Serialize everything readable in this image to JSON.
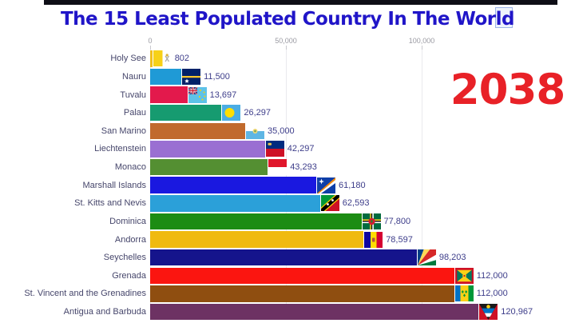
{
  "header": {
    "title": "The 15 Least Populated Country In The World",
    "title_color": "#2015c8"
  },
  "year": {
    "text": "2038",
    "color": "#e82127"
  },
  "chart_data": {
    "type": "bar",
    "orientation": "horizontal",
    "title": "The 15 Least Populated Country In The World",
    "year": "2038",
    "x_axis": {
      "ticks": [
        "0",
        "50,000",
        "100,000"
      ],
      "tick_values": [
        0,
        50000,
        100000
      ],
      "grid": true,
      "position": "top"
    },
    "sort": "ascending",
    "countries": [
      {
        "name": "Holy See",
        "value": 802,
        "label": "802",
        "color": "#f0bf1c",
        "flag": "holy-see"
      },
      {
        "name": "Nauru",
        "value": 11500,
        "label": "11,500",
        "color": "#1f9ad6",
        "flag": "nauru"
      },
      {
        "name": "Tuvalu",
        "value": 13697,
        "label": "13,697",
        "color": "#e3194c",
        "flag": "tuvalu"
      },
      {
        "name": "Palau",
        "value": 26297,
        "label": "26,297",
        "color": "#169b70",
        "flag": "palau"
      },
      {
        "name": "San Marino",
        "value": 35000,
        "label": "35,000",
        "color": "#c16a2d",
        "flag": "san-marino"
      },
      {
        "name": "Liechtenstein",
        "value": 42297,
        "label": "42,297",
        "color": "#9a6fd2",
        "flag": "liechtenstein"
      },
      {
        "name": "Monaco",
        "value": 43293,
        "label": "43,293",
        "color": "#548f32",
        "flag": "monaco"
      },
      {
        "name": "Marshall Islands",
        "value": 61180,
        "label": "61,180",
        "color": "#1a18e0",
        "flag": "marshall-islands"
      },
      {
        "name": "St. Kitts and Nevis",
        "value": 62593,
        "label": "62,593",
        "color": "#2ba0d9",
        "flag": "st-kitts-and-nevis"
      },
      {
        "name": "Dominica",
        "value": 77800,
        "label": "77,800",
        "color": "#1c8c13",
        "flag": "dominica"
      },
      {
        "name": "Andorra",
        "value": 78597,
        "label": "78,597",
        "color": "#f0ba10",
        "flag": "andorra"
      },
      {
        "name": "Seychelles",
        "value": 98203,
        "label": "98,203",
        "color": "#15148c",
        "flag": "seychelles"
      },
      {
        "name": "Grenada",
        "value": 112000,
        "label": "112,000",
        "color": "#fb1510",
        "flag": "grenada"
      },
      {
        "name": "St. Vincent and the Grenadines",
        "value": 112000,
        "label": "112,000",
        "color": "#8f4e10",
        "flag": "st-vincent-and-the-grenadines"
      },
      {
        "name": "Antigua and Barbuda",
        "value": 120967,
        "label": "120,967",
        "color": "#6d3263",
        "flag": "antigua-and-barbuda"
      }
    ]
  }
}
